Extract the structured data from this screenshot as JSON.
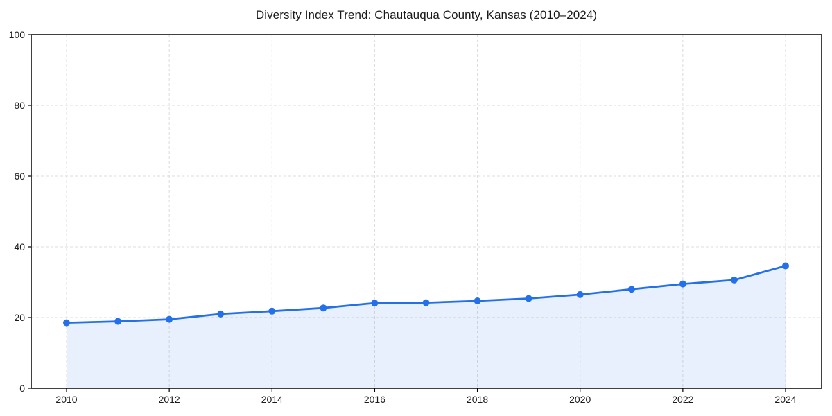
{
  "chart_data": {
    "type": "area",
    "title": "Diversity Index Trend: Chautauqua County, Kansas (2010–2024)",
    "x": [
      2010,
      2011,
      2012,
      2013,
      2014,
      2015,
      2016,
      2017,
      2018,
      2019,
      2020,
      2021,
      2022,
      2023,
      2024
    ],
    "series": [
      {
        "name": "Diversity Index",
        "values": [
          18.5,
          18.9,
          19.5,
          21.0,
          21.8,
          22.7,
          24.1,
          24.2,
          24.7,
          25.4,
          26.5,
          28.0,
          29.5,
          30.6,
          34.6
        ]
      }
    ],
    "xlabel": "",
    "ylabel": "",
    "ylim": [
      0,
      100
    ],
    "yticks": [
      0,
      20,
      40,
      60,
      80,
      100
    ],
    "xticks": [
      2010,
      2012,
      2014,
      2016,
      2018,
      2020,
      2022,
      2024
    ],
    "grid": true,
    "grid_style": "dashed",
    "legend": "none",
    "marker": "circle",
    "colors": {
      "line": "#2470e8",
      "marker": "#2470e8",
      "fill": "rgba(36,112,232,0.10)",
      "grid": "#dcdcdc",
      "axis": "#000000",
      "text": "#1a1a1a",
      "background": "#ffffff"
    }
  }
}
